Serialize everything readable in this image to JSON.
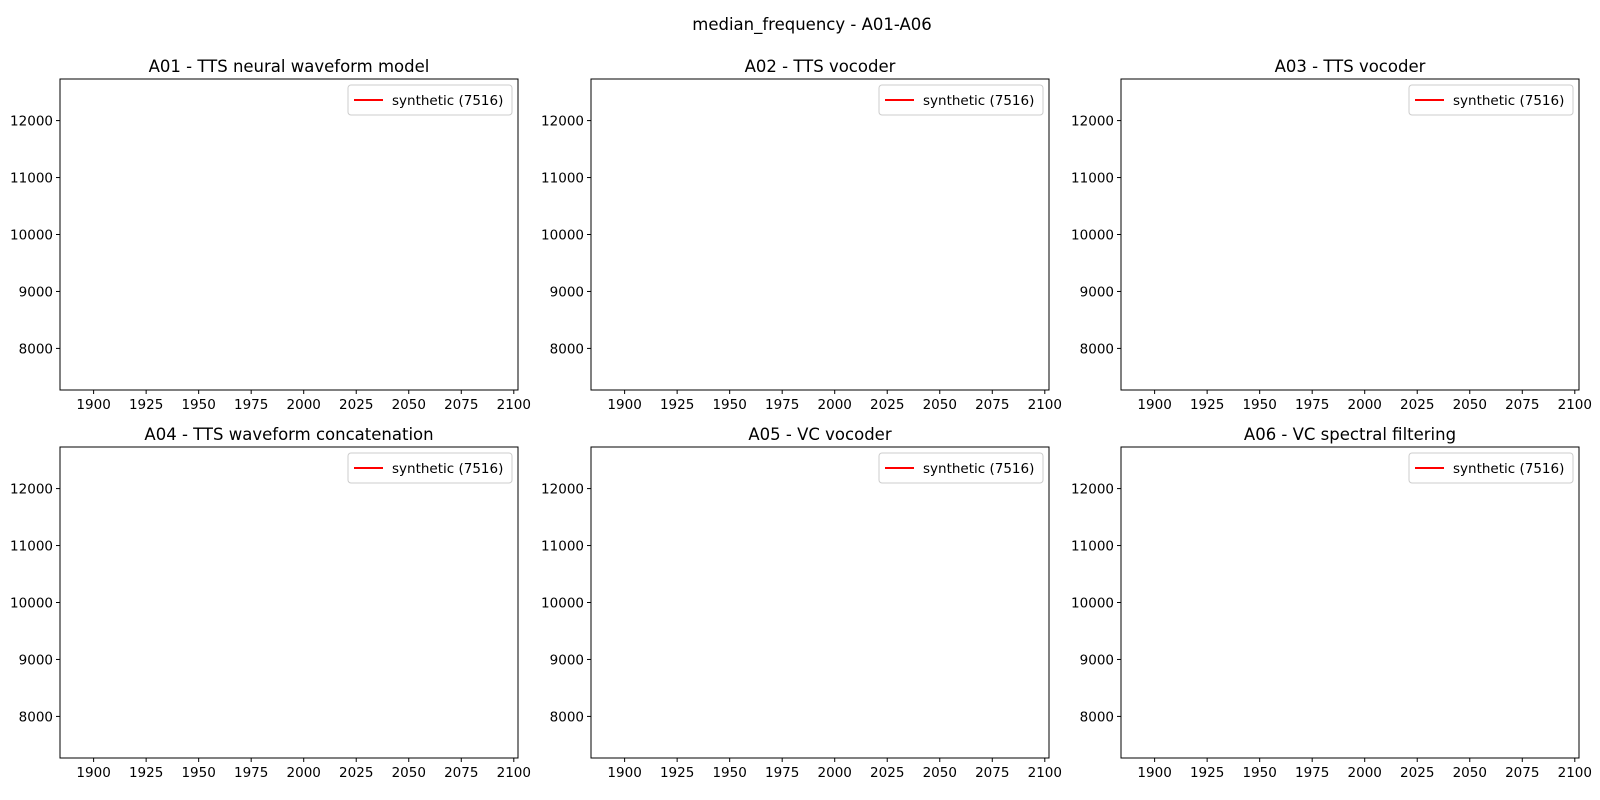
{
  "figure": {
    "suptitle": "median_frequency - A01-A06"
  },
  "colors": {
    "series_synthetic": "#ff0000",
    "axes_edge": "#000000",
    "legend_edge": "#cccccc",
    "background": "#ffffff"
  },
  "chart_data": [
    {
      "type": "line",
      "title": "A01 - TTS neural waveform model",
      "xlabel": "",
      "ylabel": "",
      "xlim": [
        1884,
        2102
      ],
      "ylim": [
        7270,
        12730
      ],
      "x_ticks": [
        1900,
        1925,
        1950,
        1975,
        2000,
        2025,
        2050,
        2075,
        2100
      ],
      "y_ticks": [
        8000,
        9000,
        10000,
        11000,
        12000
      ],
      "grid": false,
      "legend_position": "upper right",
      "series": [
        {
          "name": "synthetic (7516)",
          "color": "#ff0000",
          "x": [],
          "y": []
        }
      ]
    },
    {
      "type": "line",
      "title": "A02 - TTS vocoder",
      "xlabel": "",
      "ylabel": "",
      "xlim": [
        1884,
        2102
      ],
      "ylim": [
        7270,
        12730
      ],
      "x_ticks": [
        1900,
        1925,
        1950,
        1975,
        2000,
        2025,
        2050,
        2075,
        2100
      ],
      "y_ticks": [
        8000,
        9000,
        10000,
        11000,
        12000
      ],
      "grid": false,
      "legend_position": "upper right",
      "series": [
        {
          "name": "synthetic (7516)",
          "color": "#ff0000",
          "x": [],
          "y": []
        }
      ]
    },
    {
      "type": "line",
      "title": "A03 - TTS vocoder",
      "xlabel": "",
      "ylabel": "",
      "xlim": [
        1884,
        2102
      ],
      "ylim": [
        7270,
        12730
      ],
      "x_ticks": [
        1900,
        1925,
        1950,
        1975,
        2000,
        2025,
        2050,
        2075,
        2100
      ],
      "y_ticks": [
        8000,
        9000,
        10000,
        11000,
        12000
      ],
      "grid": false,
      "legend_position": "upper right",
      "series": [
        {
          "name": "synthetic (7516)",
          "color": "#ff0000",
          "x": [],
          "y": []
        }
      ]
    },
    {
      "type": "line",
      "title": "A04 - TTS waveform concatenation",
      "xlabel": "",
      "ylabel": "",
      "xlim": [
        1884,
        2102
      ],
      "ylim": [
        7270,
        12730
      ],
      "x_ticks": [
        1900,
        1925,
        1950,
        1975,
        2000,
        2025,
        2050,
        2075,
        2100
      ],
      "y_ticks": [
        8000,
        9000,
        10000,
        11000,
        12000
      ],
      "grid": false,
      "legend_position": "upper right",
      "series": [
        {
          "name": "synthetic (7516)",
          "color": "#ff0000",
          "x": [],
          "y": []
        }
      ]
    },
    {
      "type": "line",
      "title": "A05 - VC vocoder",
      "xlabel": "",
      "ylabel": "",
      "xlim": [
        1884,
        2102
      ],
      "ylim": [
        7270,
        12730
      ],
      "x_ticks": [
        1900,
        1925,
        1950,
        1975,
        2000,
        2025,
        2050,
        2075,
        2100
      ],
      "y_ticks": [
        8000,
        9000,
        10000,
        11000,
        12000
      ],
      "grid": false,
      "legend_position": "upper right",
      "series": [
        {
          "name": "synthetic (7516)",
          "color": "#ff0000",
          "x": [],
          "y": []
        }
      ]
    },
    {
      "type": "line",
      "title": "A06 - VC spectral filtering",
      "xlabel": "",
      "ylabel": "",
      "xlim": [
        1884,
        2102
      ],
      "ylim": [
        7270,
        12730
      ],
      "x_ticks": [
        1900,
        1925,
        1950,
        1975,
        2000,
        2025,
        2050,
        2075,
        2100
      ],
      "y_ticks": [
        8000,
        9000,
        10000,
        11000,
        12000
      ],
      "grid": false,
      "legend_position": "upper right",
      "series": [
        {
          "name": "synthetic (7516)",
          "color": "#ff0000",
          "x": [],
          "y": []
        }
      ]
    }
  ]
}
